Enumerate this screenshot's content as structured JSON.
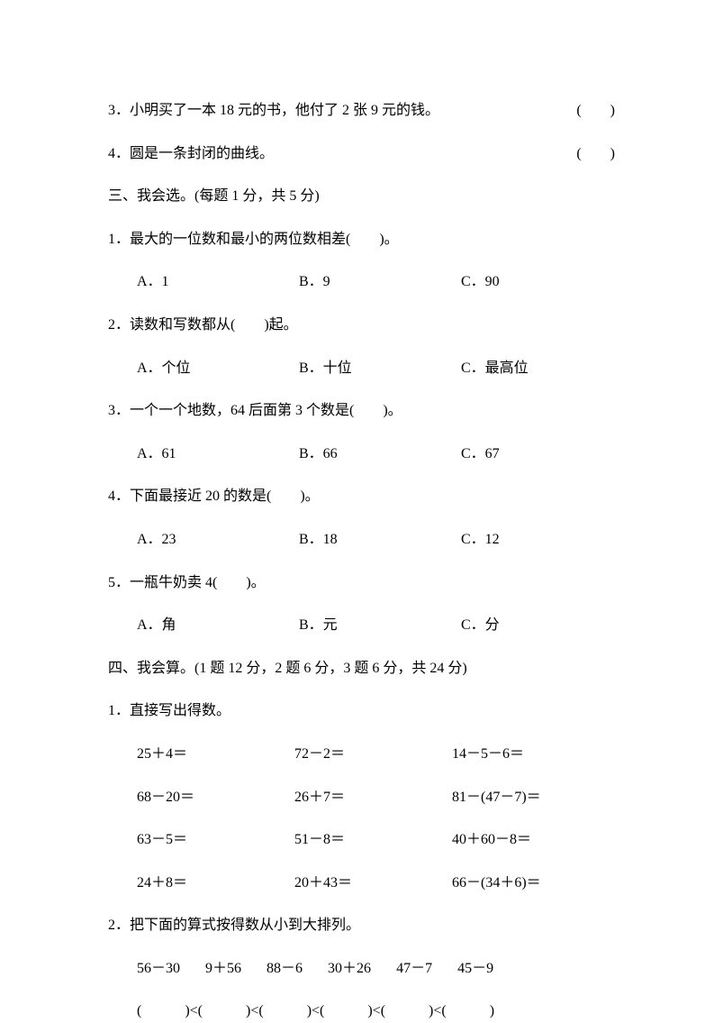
{
  "judge": {
    "q3": "3．小明买了一本 18 元的书，他付了 2 张 9 元的钱。",
    "q3_paren": "(　　)",
    "q4": "4．圆是一条封闭的曲线。",
    "q4_paren": "(　　)"
  },
  "section3": {
    "title": "三、我会选。(每题 1 分，共 5 分)",
    "q1": {
      "stem": "1．最大的一位数和最小的两位数相差(　　)。",
      "a": "A．1",
      "b": "B．9",
      "c": "C．90"
    },
    "q2": {
      "stem": "2．读数和写数都从(　　)起。",
      "a": "A．个位",
      "b": "B．十位",
      "c": "C．最高位"
    },
    "q3": {
      "stem": "3．一个一个地数，64 后面第 3 个数是(　　)。",
      "a": "A．61",
      "b": "B．66",
      "c": "C．67"
    },
    "q4": {
      "stem": "4．下面最接近 20 的数是(　　)。",
      "a": "A．23",
      "b": "B．18",
      "c": "C．12"
    },
    "q5": {
      "stem": "5．一瓶牛奶卖 4(　　)。",
      "a": "A．角",
      "b": "B．元",
      "c": "C．分"
    }
  },
  "section4": {
    "title": "四、我会算。(1 题 12 分，2 题 6 分，3 题 6 分，共 24 分)",
    "q1": {
      "stem": "1．直接写出得数。",
      "rows": [
        {
          "c1": "25＋4＝",
          "c2": "72－2＝",
          "c3": "14－5－6＝"
        },
        {
          "c1": "68－20＝",
          "c2": "26＋7＝",
          "c3": "81－(47－7)＝"
        },
        {
          "c1": "63－5＝",
          "c2": "51－8＝",
          "c3": "40＋60－8＝"
        },
        {
          "c1": "24＋8＝",
          "c2": "20＋43＝",
          "c3": "66－(34＋6)＝"
        }
      ]
    },
    "q2": {
      "stem": "2．把下面的算式按得数从小到大排列。",
      "exprs": [
        "56－30",
        "9＋56",
        "88－6",
        "30＋26",
        "47－7",
        "45－9"
      ],
      "blanks": "(　　　)<(　　　)<(　　　)<(　　　)<(　　　)<(　　　)"
    }
  },
  "colors": {
    "background": "#ffffff",
    "text": "#000000"
  },
  "fontsize_pt": 12
}
